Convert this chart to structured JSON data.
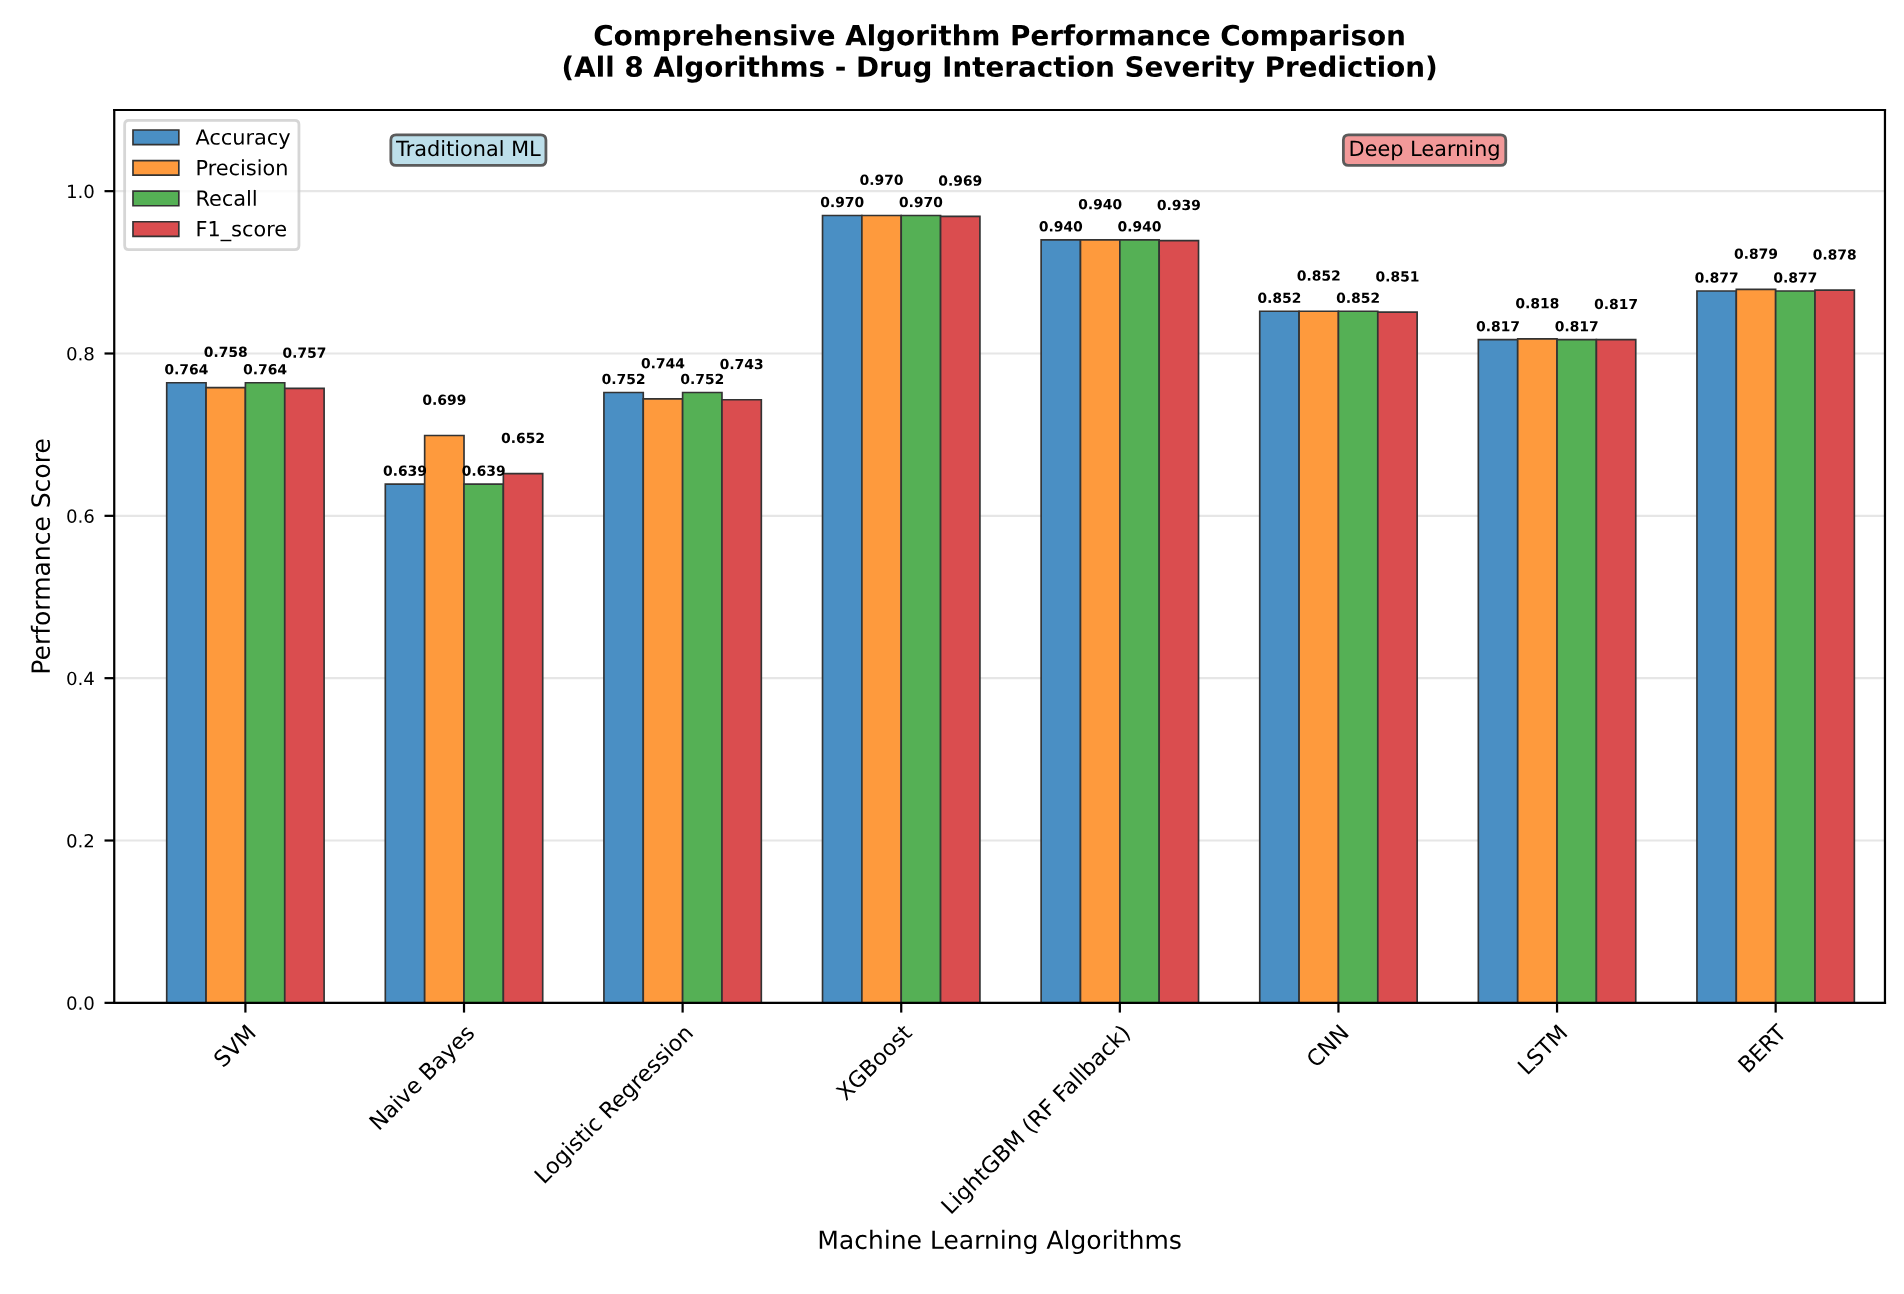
{
  "chart_data": {
    "type": "bar",
    "title": "Comprehensive Algorithm Performance Comparison\n(All 8 Algorithms - Drug Interaction Severity Prediction)",
    "xlabel": "Machine Learning Algorithms",
    "ylabel": "Performance Score",
    "categories": [
      "SVM",
      "Naive Bayes",
      "Logistic Regression",
      "XGBoost",
      "LightGBM (RF Fallback)",
      "CNN",
      "LSTM",
      "BERT"
    ],
    "series": [
      {
        "name": "Accuracy",
        "color": "#4a8fc4",
        "values": [
          0.764,
          0.639,
          0.752,
          0.97,
          0.94,
          0.852,
          0.817,
          0.877
        ],
        "value_labels": [
          "0.764",
          "0.639",
          "0.752",
          "0.970",
          "0.940",
          "0.852",
          "0.817",
          "0.877"
        ]
      },
      {
        "name": "Precision",
        "color": "#fe9a3d",
        "values": [
          0.758,
          0.699,
          0.744,
          0.97,
          0.94,
          0.852,
          0.818,
          0.879
        ],
        "value_labels": [
          "0.758",
          "0.699",
          "0.744",
          "0.970",
          "0.940",
          "0.852",
          "0.818",
          "0.879"
        ]
      },
      {
        "name": "Recall",
        "color": "#55b055",
        "values": [
          0.764,
          0.639,
          0.752,
          0.97,
          0.94,
          0.852,
          0.817,
          0.877
        ],
        "value_labels": [
          "0.764",
          "0.639",
          "0.752",
          "0.970",
          "0.940",
          "0.852",
          "0.817",
          "0.877"
        ]
      },
      {
        "name": "F1_score",
        "color": "#da4d4f",
        "values": [
          0.757,
          0.652,
          0.743,
          0.969,
          0.939,
          0.851,
          0.817,
          0.878
        ],
        "value_labels": [
          "0.757",
          "0.652",
          "0.743",
          "0.969",
          "0.939",
          "0.851",
          "0.817",
          "0.878"
        ]
      }
    ],
    "ylim": [
      0,
      1.1
    ],
    "yticks": [
      {
        "value": 0,
        "label": "0.0"
      },
      {
        "value": 0.2,
        "label": "0.2"
      },
      {
        "value": 0.4,
        "label": "0.4"
      },
      {
        "value": 0.6,
        "label": "0.6"
      },
      {
        "value": 0.8,
        "label": "0.8"
      },
      {
        "value": 1.0,
        "label": "1.0"
      }
    ],
    "grid": "y",
    "legend": "top left",
    "annotations": [
      "Traditional ML",
      "Deep Learning"
    ]
  }
}
